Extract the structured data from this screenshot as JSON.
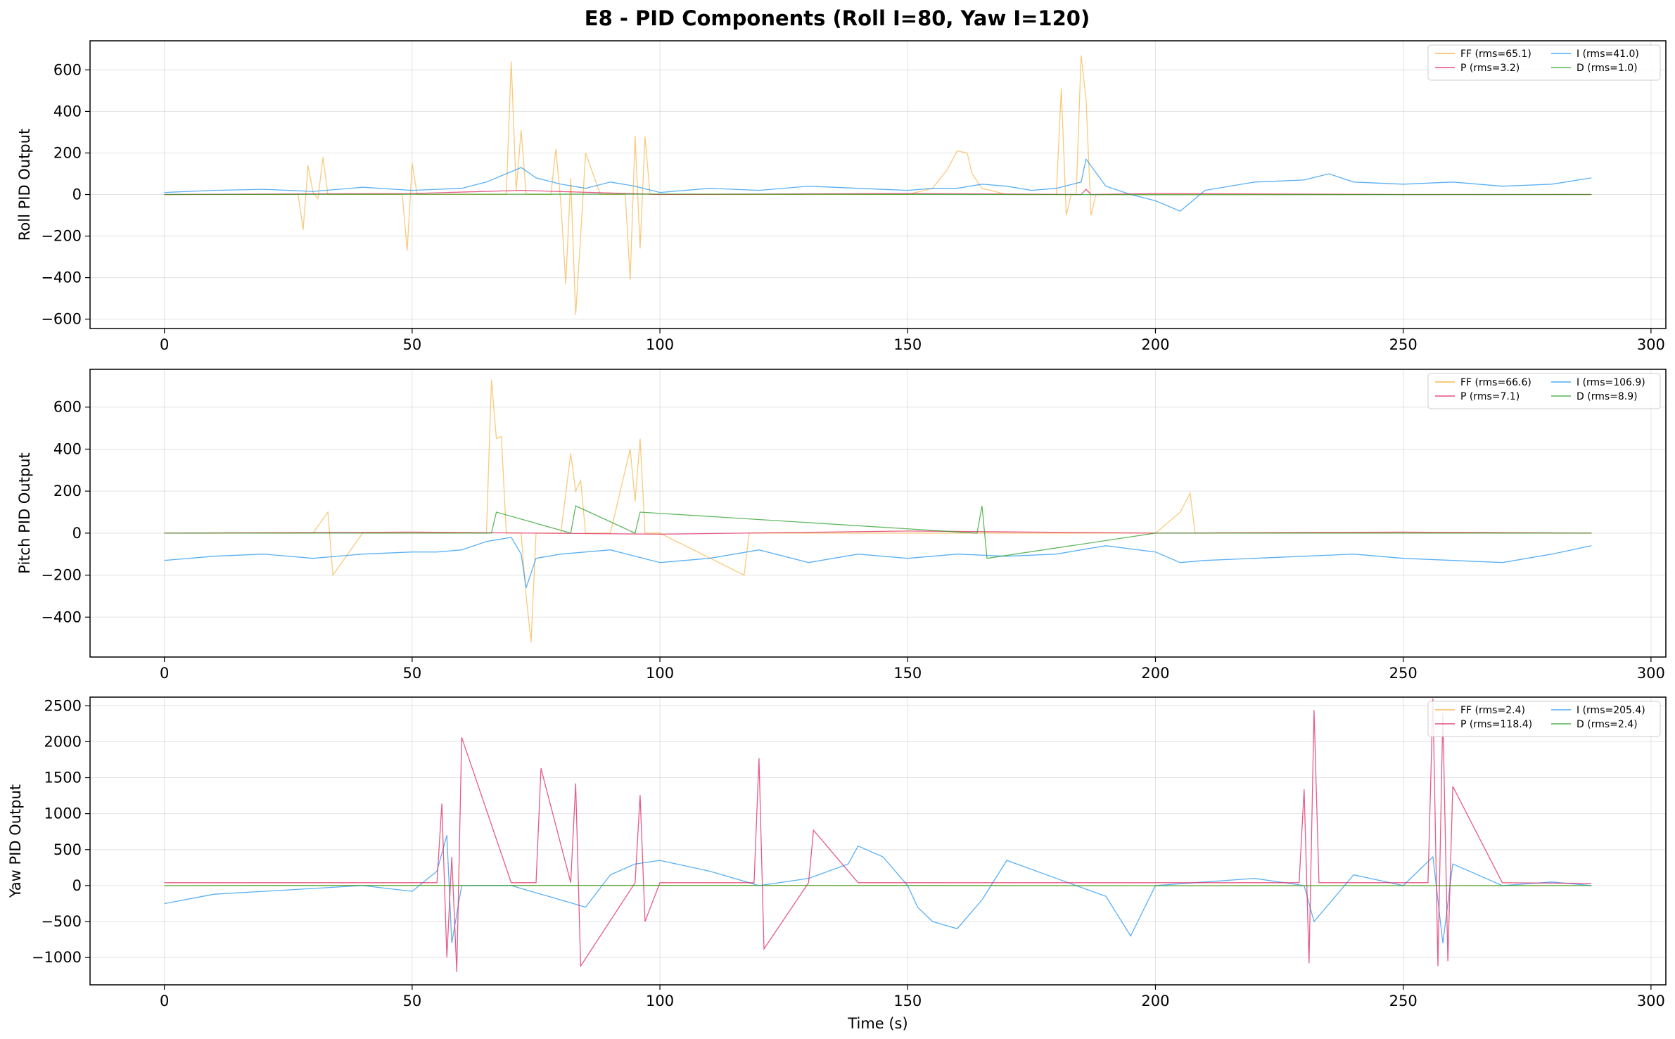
{
  "title": "E8 - PID Components (Roll I=80, Yaw I=120)",
  "colors": {
    "FF": "#f5a623",
    "P": "#e0245e",
    "I": "#2196f3",
    "D": "#2ca02c"
  },
  "chart_data": [
    {
      "type": "line",
      "name": "roll",
      "ylabel": "Roll PID Output",
      "xlabel": "",
      "xlim": [
        -15,
        303
      ],
      "ylim": [
        -645,
        740
      ],
      "xticks": [
        0,
        50,
        100,
        150,
        200,
        250,
        300
      ],
      "yticks": [
        -600,
        -400,
        -200,
        0,
        200,
        400,
        600
      ],
      "grid": true,
      "legend_position": "top-right",
      "legend": [
        "FF (rms=65.1)",
        "I (rms=41.0)",
        "P (rms=3.2)",
        "D (rms=1.0)"
      ],
      "series": [
        {
          "name": "FF (rms=65.1)",
          "key": "FF",
          "rms": 65.1,
          "x": [
            0,
            27,
            28,
            29,
            30,
            31,
            32,
            33,
            48,
            49,
            50,
            51,
            65,
            69,
            70,
            71,
            72,
            73,
            78,
            79,
            80,
            81,
            82,
            83,
            84,
            85,
            88,
            93,
            94,
            95,
            96,
            97,
            98,
            99,
            100,
            140,
            150,
            155,
            158,
            160,
            162,
            163,
            165,
            170,
            180,
            181,
            182,
            183,
            184,
            185,
            186,
            187,
            188,
            189,
            190,
            200,
            250,
            260,
            270,
            288
          ],
          "values": [
            0,
            0,
            -170,
            140,
            10,
            -20,
            180,
            0,
            0,
            -270,
            150,
            0,
            0,
            0,
            640,
            20,
            310,
            0,
            0,
            220,
            -40,
            -430,
            80,
            -580,
            -200,
            200,
            0,
            0,
            -410,
            280,
            -260,
            280,
            0,
            0,
            0,
            0,
            0,
            30,
            120,
            210,
            200,
            100,
            30,
            0,
            0,
            510,
            -100,
            0,
            0,
            670,
            460,
            -100,
            0,
            0,
            0,
            0,
            0,
            0,
            0,
            0
          ]
        },
        {
          "name": "I (rms=41.0)",
          "key": "I",
          "rms": 41.0,
          "x": [
            0,
            10,
            20,
            30,
            40,
            50,
            60,
            65,
            70,
            72,
            75,
            80,
            85,
            90,
            95,
            100,
            110,
            120,
            130,
            140,
            150,
            155,
            160,
            165,
            170,
            175,
            180,
            185,
            186,
            190,
            195,
            200,
            205,
            210,
            220,
            230,
            235,
            240,
            250,
            260,
            270,
            280,
            288
          ],
          "values": [
            10,
            20,
            25,
            15,
            35,
            20,
            30,
            60,
            110,
            130,
            80,
            50,
            30,
            60,
            40,
            10,
            30,
            20,
            40,
            30,
            20,
            30,
            30,
            50,
            40,
            20,
            30,
            60,
            170,
            40,
            0,
            -30,
            -80,
            20,
            60,
            70,
            100,
            60,
            50,
            60,
            40,
            50,
            80
          ]
        },
        {
          "name": "P (rms=3.2)",
          "key": "P",
          "rms": 3.2,
          "x": [
            0,
            50,
            72,
            100,
            150,
            185,
            186,
            187,
            200,
            250,
            288
          ],
          "values": [
            0,
            5,
            20,
            0,
            5,
            0,
            25,
            0,
            5,
            0,
            0
          ]
        },
        {
          "name": "D (rms=1.0)",
          "key": "D",
          "rms": 1.0,
          "x": [
            0,
            100,
            200,
            288
          ],
          "values": [
            0,
            2,
            -1,
            0
          ]
        }
      ]
    },
    {
      "type": "line",
      "name": "pitch",
      "ylabel": "Pitch PID Output",
      "xlabel": "",
      "xlim": [
        -15,
        303
      ],
      "ylim": [
        -590,
        780
      ],
      "xticks": [
        0,
        50,
        100,
        150,
        200,
        250,
        300
      ],
      "yticks": [
        -400,
        -200,
        0,
        200,
        400,
        600
      ],
      "grid": true,
      "legend_position": "top-right",
      "legend": [
        "FF (rms=66.6)",
        "I (rms=106.9)",
        "P (rms=7.1)",
        "D (rms=8.9)"
      ],
      "series": [
        {
          "name": "FF (rms=66.6)",
          "key": "FF",
          "rms": 66.6,
          "x": [
            0,
            30,
            33,
            34,
            40,
            60,
            65,
            66,
            67,
            68,
            69,
            70,
            72,
            73,
            74,
            75,
            80,
            82,
            83,
            84,
            85,
            86,
            90,
            94,
            95,
            96,
            97,
            98,
            100,
            117,
            118,
            119,
            125,
            140,
            150,
            165,
            180,
            200,
            205,
            207,
            208,
            209,
            215,
            250,
            288
          ],
          "values": [
            0,
            0,
            100,
            -200,
            0,
            0,
            0,
            730,
            450,
            460,
            0,
            0,
            0,
            -300,
            -520,
            0,
            0,
            380,
            200,
            250,
            0,
            0,
            0,
            400,
            150,
            450,
            0,
            0,
            0,
            -200,
            0,
            0,
            0,
            0,
            0,
            0,
            0,
            0,
            100,
            190,
            0,
            0,
            0,
            0,
            0
          ]
        },
        {
          "name": "I (rms=106.9)",
          "key": "I",
          "rms": 106.9,
          "x": [
            0,
            5,
            10,
            20,
            30,
            40,
            50,
            55,
            60,
            65,
            70,
            72,
            73,
            75,
            80,
            85,
            90,
            100,
            110,
            120,
            130,
            140,
            150,
            160,
            170,
            180,
            185,
            190,
            200,
            205,
            210,
            220,
            230,
            240,
            250,
            260,
            270,
            280,
            288
          ],
          "values": [
            -130,
            -120,
            -110,
            -100,
            -120,
            -100,
            -90,
            -90,
            -80,
            -40,
            -20,
            -100,
            -260,
            -120,
            -100,
            -90,
            -80,
            -140,
            -120,
            -80,
            -140,
            -100,
            -120,
            -100,
            -110,
            -100,
            -80,
            -60,
            -90,
            -140,
            -130,
            -120,
            -110,
            -100,
            -120,
            -130,
            -140,
            -100,
            -60
          ]
        },
        {
          "name": "P (rms=7.1)",
          "key": "P",
          "rms": 7.1,
          "x": [
            0,
            50,
            100,
            150,
            200,
            250,
            288
          ],
          "values": [
            0,
            5,
            -5,
            10,
            0,
            5,
            0
          ]
        },
        {
          "name": "D (rms=8.9)",
          "key": "D",
          "rms": 8.9,
          "x": [
            0,
            66,
            67,
            82,
            83,
            95,
            96,
            164,
            165,
            166,
            200,
            250,
            288
          ],
          "values": [
            0,
            0,
            100,
            0,
            130,
            0,
            100,
            0,
            130,
            -120,
            0,
            0,
            0
          ]
        }
      ]
    },
    {
      "type": "line",
      "name": "yaw",
      "ylabel": "Yaw PID Output",
      "xlabel": "Time (s)",
      "xlim": [
        -15,
        303
      ],
      "ylim": [
        -1380,
        2620
      ],
      "xticks": [
        0,
        50,
        100,
        150,
        200,
        250,
        300
      ],
      "yticks": [
        -1000,
        -500,
        0,
        500,
        1000,
        1500,
        2000,
        2500
      ],
      "grid": true,
      "legend_position": "top-right",
      "legend": [
        "FF (rms=2.4)",
        "I (rms=205.4)",
        "P (rms=118.4)",
        "D (rms=2.4)"
      ],
      "series": [
        {
          "name": "FF (rms=2.4)",
          "key": "FF",
          "rms": 2.4,
          "x": [
            0,
            100,
            200,
            288
          ],
          "values": [
            0,
            2,
            -2,
            0
          ]
        },
        {
          "name": "I (rms=205.4)",
          "key": "I",
          "rms": 205.4,
          "x": [
            0,
            10,
            20,
            30,
            40,
            50,
            55,
            57,
            58,
            60,
            70,
            80,
            85,
            90,
            95,
            100,
            110,
            120,
            130,
            138,
            140,
            145,
            150,
            152,
            155,
            160,
            165,
            170,
            180,
            190,
            195,
            200,
            210,
            220,
            230,
            232,
            240,
            250,
            256,
            258,
            260,
            270,
            280,
            288
          ],
          "values": [
            -250,
            -120,
            -80,
            -40,
            0,
            -80,
            200,
            700,
            -800,
            0,
            0,
            -200,
            -300,
            150,
            300,
            350,
            200,
            0,
            100,
            300,
            550,
            400,
            0,
            -300,
            -500,
            -600,
            -200,
            350,
            100,
            -150,
            -700,
            0,
            50,
            100,
            0,
            -500,
            150,
            0,
            400,
            -800,
            300,
            0,
            50,
            0
          ]
        },
        {
          "name": "P (rms=118.4)",
          "key": "P",
          "rms": 118.4,
          "x": [
            0,
            55,
            56,
            57,
            58,
            59,
            60,
            70,
            75,
            76,
            82,
            83,
            84,
            95,
            96,
            97,
            100,
            119,
            120,
            121,
            130,
            131,
            140,
            150,
            200,
            229,
            230,
            231,
            232,
            233,
            250,
            255,
            256,
            257,
            258,
            259,
            260,
            270,
            288
          ],
          "values": [
            40,
            40,
            1140,
            -1000,
            400,
            -1200,
            2060,
            40,
            40,
            1630,
            40,
            1420,
            -1120,
            40,
            1260,
            -500,
            40,
            40,
            1770,
            -880,
            40,
            770,
            40,
            40,
            40,
            40,
            1340,
            -1080,
            2440,
            40,
            40,
            40,
            2600,
            -1120,
            2400,
            -1050,
            1380,
            40,
            30
          ]
        },
        {
          "name": "D (rms=2.4)",
          "key": "D",
          "rms": 2.4,
          "x": [
            0,
            100,
            200,
            288
          ],
          "values": [
            0,
            3,
            -2,
            0
          ]
        }
      ]
    }
  ]
}
